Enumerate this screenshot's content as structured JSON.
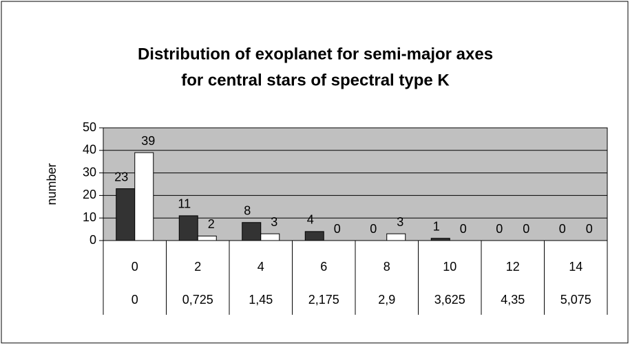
{
  "chart_data": {
    "type": "bar",
    "title": [
      "Distribution of exoplanet for semi-major axes",
      "for central stars of spectral type K"
    ],
    "y_label": "number",
    "categories": [
      "0",
      "2",
      "4",
      "6",
      "8",
      "10",
      "12",
      "14"
    ],
    "secondary_categories": [
      "0",
      "0,725",
      "1,45",
      "2,175",
      "2,9",
      "3,625",
      "4,35",
      "5,075"
    ],
    "series": [
      {
        "color": "#333333",
        "values": [
          23,
          11,
          8,
          4,
          0,
          1,
          0,
          0
        ]
      },
      {
        "color": "#ffffff",
        "values": [
          39,
          2,
          3,
          0,
          3,
          0,
          0,
          0
        ]
      }
    ],
    "ylim": [
      0,
      50
    ],
    "yticks": [
      0,
      10,
      20,
      30,
      40,
      50
    ],
    "grid": true,
    "plot_background": "#c0c0c0"
  }
}
